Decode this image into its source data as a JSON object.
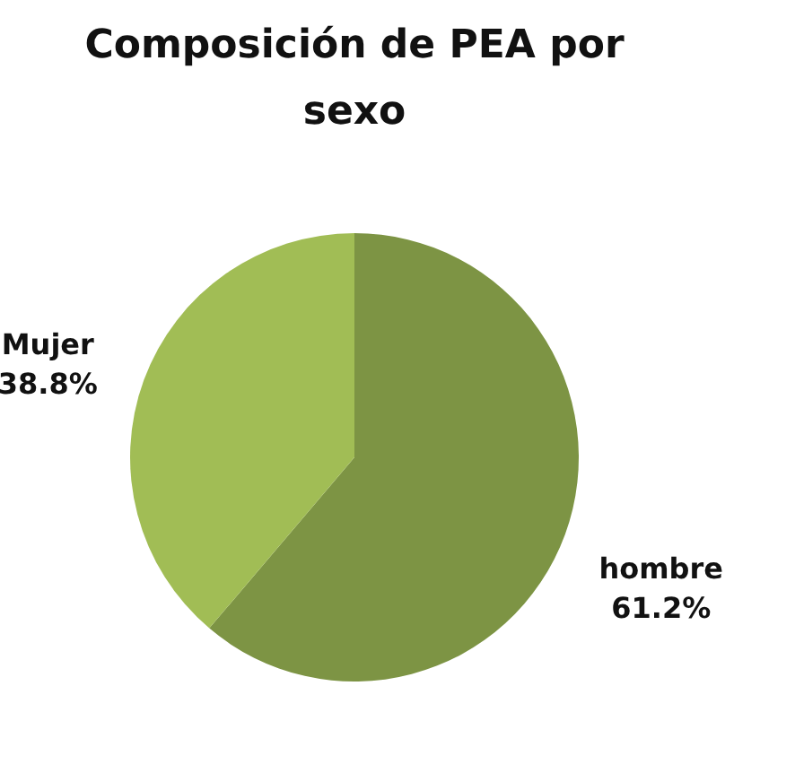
{
  "chart_data": {
    "type": "pie",
    "title": "Composición de PEA por sexo",
    "categories": [
      "hombre",
      "Mujer"
    ],
    "values": [
      61.2,
      38.8
    ],
    "value_labels": [
      "61.2%",
      "38.8%"
    ],
    "colors": [
      "#7d9444",
      "#a1bd55"
    ]
  }
}
